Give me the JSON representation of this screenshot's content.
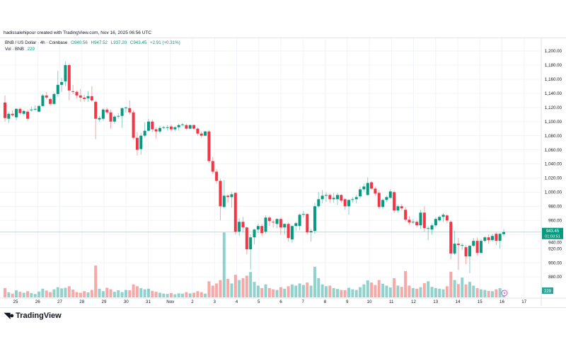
{
  "header": {
    "attribution": "hadissalehipour created with TradingView.com, Nov 16, 2025 06:56 UTC",
    "symbol_line": "BNB / US Dollar · 4h · Coinbase",
    "open": "O940.56",
    "high": "H947.52",
    "low": "L937.20",
    "close": "C943.45",
    "change": "+2.91 (+0.31%)",
    "volume_label": "Vol · BNB",
    "volume_value": "229"
  },
  "last_price": {
    "value": "943.45",
    "countdown": "01:03:51"
  },
  "volume_badge": "229",
  "logo": "TradingView",
  "colors": {
    "up": "#089981",
    "down": "#f23645",
    "vol_up": "#26a69a",
    "vol_down": "#ef5350",
    "last_price": "#089981",
    "grid": "#f0f3fa"
  },
  "chart_data": {
    "type": "candlestick",
    "title": "BNB / US Dollar · 4h · Coinbase",
    "ylim": [
      870,
      1210
    ],
    "y_ticks": [
      "880.00",
      "900.00",
      "920.00",
      "940.00",
      "960.00",
      "980.00",
      "1,000.00",
      "1,020.00",
      "1,040.00",
      "1,060.00",
      "1,080.00",
      "1,100.00",
      "1,120.00",
      "1,140.00",
      "1,160.00",
      "1,180.00",
      "1,200.00"
    ],
    "y_tick_values": [
      880,
      900,
      920,
      940,
      960,
      980,
      1000,
      1020,
      1040,
      1060,
      1080,
      1100,
      1120,
      1140,
      1160,
      1180,
      1200
    ],
    "x_ticks": [
      "25",
      "26",
      "27",
      "28",
      "29",
      "30",
      "31",
      "Nov",
      "2",
      "3",
      "4",
      "5",
      "6",
      "7",
      "8",
      "9",
      "10",
      "11",
      "12",
      "13",
      "14",
      "15",
      "16",
      "17"
    ],
    "grid": true,
    "candles_ohlc": [
      [
        1127,
        1137,
        1100,
        1105
      ],
      [
        1104,
        1114,
        1098,
        1111
      ],
      [
        1111,
        1116,
        1107,
        1109
      ],
      [
        1106,
        1119,
        1102,
        1118
      ],
      [
        1118,
        1120,
        1110,
        1112
      ],
      [
        1111,
        1117,
        1109,
        1115
      ],
      [
        1114,
        1117,
        1101,
        1104
      ],
      [
        1116,
        1121,
        1114,
        1117
      ],
      [
        1117,
        1123,
        1115,
        1118
      ],
      [
        1114,
        1124,
        1113,
        1122
      ],
      [
        1122,
        1139,
        1121,
        1137
      ],
      [
        1137,
        1142,
        1131,
        1134
      ],
      [
        1132,
        1134,
        1122,
        1125
      ],
      [
        1125,
        1141,
        1124,
        1139
      ],
      [
        1139,
        1172,
        1135,
        1152
      ],
      [
        1152,
        1162,
        1142,
        1156
      ],
      [
        1157,
        1185,
        1150,
        1180
      ],
      [
        1180,
        1182,
        1130,
        1144
      ],
      [
        1143,
        1152,
        1139,
        1142
      ],
      [
        1142,
        1144,
        1133,
        1137
      ],
      [
        1137,
        1146,
        1128,
        1134
      ],
      [
        1134,
        1138,
        1128,
        1132
      ],
      [
        1133,
        1143,
        1128,
        1136
      ],
      [
        1136,
        1150,
        1128,
        1130
      ],
      [
        1128,
        1130,
        1075,
        1104
      ],
      [
        1103,
        1108,
        1100,
        1105
      ],
      [
        1104,
        1119,
        1101,
        1117
      ],
      [
        1117,
        1120,
        1110,
        1113
      ],
      [
        1113,
        1117,
        1090,
        1100
      ],
      [
        1100,
        1109,
        1097,
        1107
      ],
      [
        1107,
        1112,
        1104,
        1108
      ],
      [
        1108,
        1120,
        1091,
        1119
      ],
      [
        1119,
        1121,
        1113,
        1120
      ],
      [
        1119,
        1130,
        1110,
        1113
      ],
      [
        1113,
        1116,
        1075,
        1077
      ],
      [
        1077,
        1085,
        1052,
        1060
      ],
      [
        1061,
        1084,
        1053,
        1080
      ],
      [
        1080,
        1099,
        1078,
        1087
      ],
      [
        1087,
        1104,
        1086,
        1100
      ],
      [
        1100,
        1103,
        1085,
        1089
      ],
      [
        1089,
        1092,
        1076,
        1086
      ],
      [
        1086,
        1094,
        1083,
        1091
      ],
      [
        1091,
        1094,
        1089,
        1092
      ],
      [
        1092,
        1095,
        1087,
        1092
      ],
      [
        1093,
        1096,
        1086,
        1089
      ],
      [
        1089,
        1093,
        1086,
        1092
      ],
      [
        1092,
        1097,
        1087,
        1095
      ],
      [
        1095,
        1098,
        1093,
        1096
      ],
      [
        1095,
        1097,
        1088,
        1090
      ],
      [
        1090,
        1096,
        1089,
        1095
      ],
      [
        1095,
        1096,
        1088,
        1090
      ],
      [
        1090,
        1092,
        1080,
        1083
      ],
      [
        1083,
        1086,
        1077,
        1080
      ],
      [
        1080,
        1087,
        1079,
        1086
      ],
      [
        1086,
        1088,
        1041,
        1044
      ],
      [
        1044,
        1050,
        1026,
        1029
      ],
      [
        1029,
        1033,
        1012,
        1016
      ],
      [
        1016,
        1019,
        960,
        980
      ],
      [
        979,
        1017,
        977,
        995
      ],
      [
        995,
        997,
        985,
        993
      ],
      [
        993,
        1000,
        978,
        997
      ],
      [
        999,
        1000,
        940,
        944
      ],
      [
        944,
        963,
        938,
        958
      ],
      [
        958,
        965,
        943,
        950
      ],
      [
        950,
        951,
        912,
        919
      ],
      [
        919,
        940,
        890,
        936
      ],
      [
        936,
        948,
        926,
        947
      ],
      [
        947,
        955,
        942,
        952
      ],
      [
        952,
        955,
        938,
        942
      ],
      [
        944,
        967,
        941,
        964
      ],
      [
        964,
        966,
        952,
        959
      ],
      [
        958,
        961,
        950,
        957
      ],
      [
        955,
        963,
        949,
        962
      ],
      [
        962,
        964,
        940,
        950
      ],
      [
        950,
        956,
        940,
        955
      ],
      [
        955,
        957,
        930,
        935
      ],
      [
        933,
        953,
        928,
        952
      ],
      [
        952,
        958,
        945,
        956
      ],
      [
        952,
        970,
        946,
        968
      ],
      [
        968,
        973,
        964,
        969
      ],
      [
        969,
        970,
        940,
        943
      ],
      [
        943,
        948,
        930,
        945
      ],
      [
        945,
        985,
        941,
        980
      ],
      [
        980,
        1000,
        978,
        990
      ],
      [
        990,
        1003,
        984,
        995
      ],
      [
        995,
        1000,
        986,
        996
      ],
      [
        996,
        998,
        985,
        990
      ],
      [
        990,
        999,
        985,
        992
      ],
      [
        990,
        999,
        982,
        996
      ],
      [
        996,
        997,
        985,
        988
      ],
      [
        990,
        992,
        975,
        980
      ],
      [
        980,
        990,
        968,
        989
      ],
      [
        989,
        993,
        985,
        990
      ],
      [
        990,
        996,
        984,
        993
      ],
      [
        994,
        1008,
        991,
        1004
      ],
      [
        1004,
        1012,
        1001,
        1008
      ],
      [
        996,
        1021,
        995,
        1013
      ],
      [
        1014,
        1016,
        1003,
        1005
      ],
      [
        1005,
        1008,
        995,
        998
      ],
      [
        999,
        1003,
        976,
        979
      ],
      [
        979,
        991,
        976,
        989
      ],
      [
        989,
        995,
        986,
        993
      ],
      [
        992,
        1004,
        990,
        1001
      ],
      [
        1000,
        1002,
        970,
        974
      ],
      [
        974,
        982,
        971,
        980
      ],
      [
        980,
        983,
        974,
        977
      ],
      [
        975,
        979,
        958,
        961
      ],
      [
        961,
        966,
        954,
        957
      ],
      [
        958,
        962,
        955,
        958
      ],
      [
        958,
        960,
        950,
        953
      ],
      [
        953,
        975,
        948,
        971
      ],
      [
        971,
        980,
        944,
        949
      ],
      [
        949,
        952,
        932,
        949
      ],
      [
        947,
        956,
        940,
        953
      ],
      [
        953,
        964,
        950,
        962
      ],
      [
        960,
        967,
        958,
        965
      ],
      [
        965,
        970,
        958,
        968
      ],
      [
        967,
        969,
        956,
        960
      ],
      [
        958,
        960,
        905,
        913
      ],
      [
        913,
        945,
        911,
        927
      ],
      [
        927,
        935,
        890,
        925
      ],
      [
        925,
        928,
        918,
        925
      ],
      [
        922,
        925,
        898,
        909
      ],
      [
        909,
        925,
        885,
        924
      ],
      [
        924,
        935,
        922,
        931
      ],
      [
        931,
        936,
        910,
        914
      ],
      [
        914,
        934,
        912,
        931
      ],
      [
        931,
        938,
        929,
        936
      ],
      [
        936,
        940,
        927,
        932
      ],
      [
        932,
        941,
        930,
        938
      ],
      [
        941,
        943,
        925,
        931
      ],
      [
        931,
        942,
        920,
        941
      ],
      [
        940.56,
        947.52,
        937.2,
        943.45
      ]
    ],
    "volumes": [
      300,
      160,
      120,
      230,
      180,
      150,
      200,
      140,
      110,
      190,
      280,
      220,
      170,
      260,
      330,
      290,
      310,
      360,
      250,
      170,
      150,
      200,
      160,
      240,
      1030,
      280,
      200,
      310,
      260,
      180,
      230,
      170,
      240,
      230,
      420,
      360,
      300,
      260,
      280,
      210,
      180,
      150,
      120,
      110,
      140,
      100,
      130,
      120,
      170,
      130,
      150,
      200,
      170,
      120,
      520,
      380,
      450,
      560,
      2100,
      600,
      450,
      730,
      560,
      620,
      700,
      820,
      500,
      380,
      300,
      420,
      300,
      260,
      240,
      330,
      280,
      360,
      420,
      380,
      450,
      400,
      480,
      380,
      990,
      620,
      420,
      360,
      380,
      300,
      270,
      240,
      230,
      310,
      260,
      240,
      330,
      420,
      550,
      480,
      400,
      560,
      440,
      380,
      320,
      620,
      380,
      340,
      850,
      380,
      300,
      280,
      330,
      460,
      520,
      340,
      300,
      280,
      260,
      360,
      830,
      560,
      430,
      640,
      420,
      500,
      380,
      300,
      260,
      240,
      210,
      200,
      260,
      300,
      229
    ],
    "last_price": 943.45
  }
}
